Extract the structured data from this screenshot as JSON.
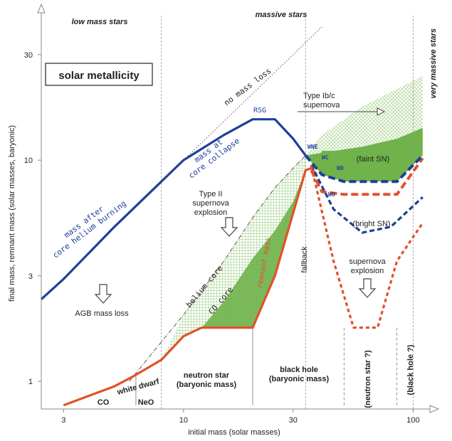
{
  "chart_data": {
    "type": "line",
    "xscale": "log",
    "yscale": "log",
    "xlim": [
      2.4,
      115
    ],
    "ylim": [
      0.75,
      45
    ],
    "xlabel": "initial mass (solar masses)",
    "ylabel": "final mass, remnant mass (solar masses, baryonic)",
    "xticks": [
      3,
      10,
      30,
      100
    ],
    "yticks": [
      1,
      3,
      10,
      30
    ],
    "header": {
      "left": "low mass stars",
      "center": "massive stars",
      "right": "very massive stars"
    },
    "legend_box": "solar metallicity",
    "vlines": [
      8,
      34,
      100
    ],
    "series": [
      {
        "name": "mass after core helium burning / mass at core collapse",
        "color": "#1f3f9a",
        "x": [
          2.4,
          3,
          5,
          8,
          10,
          15,
          20,
          25,
          30,
          34
        ],
        "y": [
          2.35,
          2.9,
          5.0,
          8.0,
          10.0,
          13.0,
          15.3,
          15.3,
          12.5,
          10.5
        ]
      },
      {
        "name": "no mass loss",
        "color": "#555555",
        "x": [
          8,
          40
        ],
        "y": [
          8,
          40
        ]
      },
      {
        "name": "helium core",
        "color": "#555555",
        "x": [
          5.8,
          10,
          15,
          20,
          25,
          30,
          34
        ],
        "y": [
          1.0,
          2.0,
          3.5,
          5.5,
          7.5,
          9.2,
          10.5
        ]
      },
      {
        "name": "remnant mass",
        "color": "#e2512b",
        "x": [
          3,
          5,
          6,
          8,
          10,
          12,
          20,
          25,
          34,
          36,
          38
        ],
        "y": [
          0.78,
          0.95,
          1.05,
          1.25,
          1.6,
          1.75,
          1.75,
          3.0,
          9.0,
          9.2,
          8.6
        ]
      },
      {
        "name": "remnant mass faint SN",
        "color": "#e2512b",
        "x": [
          36,
          40,
          50,
          85,
          110
        ],
        "y": [
          9.0,
          7.2,
          7.0,
          7.0,
          10.2
        ]
      },
      {
        "name": "WNE/WC/WO faint SN",
        "color": "#1f3f9a",
        "x": [
          34,
          40,
          50,
          85,
          110
        ],
        "y": [
          10.5,
          8.6,
          8.0,
          8.0,
          10.5
        ]
      },
      {
        "name": "WO bright SN",
        "color": "#1f3f9a",
        "x": [
          36,
          45,
          60,
          80,
          110
        ],
        "y": [
          9.5,
          6.0,
          4.7,
          5.0,
          6.8
        ]
      },
      {
        "name": "supernova explosion",
        "color": "#e2512b",
        "x": [
          36,
          45,
          55,
          70,
          85,
          110
        ],
        "y": [
          9.4,
          3.5,
          1.75,
          1.75,
          3.5,
          5.2
        ]
      }
    ],
    "annotations": {
      "mass_after": "mass after\ncore helium burning",
      "mass_at": "mass at\ncore collapse",
      "no_mass_loss": "no mass loss",
      "rsg": "RSG",
      "type_ibc": "Type Ib/c\nsupernova",
      "type_ii": "Type II\nsupernova\nexplosion",
      "helium_core": "helium core",
      "co_core": "CO core",
      "remnant_mass": "remnant mass",
      "wne": "WNE",
      "wc": "WC",
      "wo1": "WO",
      "wo2": "WO",
      "faint_sn": "(faint SN)",
      "bright_sn": "(bright SN)",
      "fallback": "fallback",
      "supernova_explosion": "supernova\nexplosion",
      "agb": "AGB mass loss",
      "white_dwarf": "white dwarf",
      "co": "CO",
      "neo": "NeO",
      "neutron_star": "neutron star\n(baryonic mass)",
      "black_hole": "black hole\n(baryonic mass)",
      "neutron_star_q": "(neutron star ?)",
      "black_hole_q": "(black hole ?)"
    },
    "colors": {
      "blue": "#1f3f9a",
      "red": "#e2512b",
      "green": "#6fb34a",
      "hatch": "#7fbd5f",
      "gray": "#555555"
    }
  }
}
